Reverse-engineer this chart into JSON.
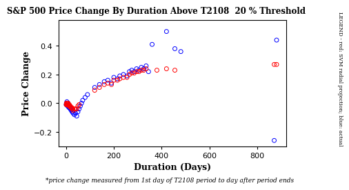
{
  "title": "S&P 500 Price Change By Duration Above T2108  20 % Threshold",
  "xlabel": "Duration (Days)",
  "ylabel": "Price Change",
  "footnote": "*price change measured from 1st day of T2108 period to day after period ends",
  "legend_text": "LEGEND - red: SVM radial projection; blue: actual",
  "xlim": [
    -30,
    920
  ],
  "ylim": [
    -0.3,
    0.58
  ],
  "xticks": [
    0,
    200,
    400,
    600,
    800
  ],
  "yticks": [
    -0.2,
    0.0,
    0.2,
    0.4
  ],
  "blue_x": [
    1,
    2,
    3,
    4,
    5,
    6,
    7,
    8,
    9,
    10,
    12,
    14,
    16,
    18,
    20,
    22,
    24,
    26,
    28,
    30,
    35,
    40,
    45,
    50,
    55,
    60,
    65,
    70,
    80,
    90,
    120,
    140,
    160,
    175,
    190,
    200,
    215,
    225,
    240,
    255,
    265,
    275,
    285,
    295,
    305,
    315,
    325,
    335,
    345,
    360,
    420,
    455,
    480,
    870,
    880
  ],
  "blue_y": [
    -0.01,
    0.0,
    -0.01,
    0.01,
    -0.01,
    0.0,
    -0.02,
    -0.01,
    0.0,
    -0.02,
    -0.03,
    -0.02,
    -0.03,
    -0.04,
    -0.03,
    -0.05,
    -0.04,
    -0.06,
    -0.06,
    -0.07,
    -0.08,
    -0.07,
    -0.09,
    -0.06,
    -0.04,
    -0.02,
    0.0,
    0.02,
    0.04,
    0.06,
    0.11,
    0.13,
    0.15,
    0.16,
    0.14,
    0.18,
    0.17,
    0.19,
    0.2,
    0.19,
    0.22,
    0.23,
    0.22,
    0.24,
    0.23,
    0.25,
    0.24,
    0.26,
    0.22,
    0.41,
    0.5,
    0.38,
    0.36,
    -0.26,
    0.44
  ],
  "red_x": [
    1,
    2,
    3,
    4,
    5,
    6,
    7,
    8,
    9,
    10,
    12,
    14,
    16,
    18,
    20,
    22,
    24,
    26,
    28,
    30,
    35,
    40,
    45,
    50,
    55,
    120,
    140,
    160,
    175,
    190,
    200,
    215,
    225,
    240,
    255,
    265,
    275,
    285,
    295,
    305,
    315,
    325,
    335,
    380,
    420,
    455,
    870,
    880
  ],
  "red_y": [
    -0.01,
    0.0,
    -0.01,
    0.0,
    -0.01,
    0.0,
    -0.01,
    -0.01,
    0.0,
    -0.01,
    -0.02,
    -0.01,
    -0.02,
    -0.02,
    -0.03,
    -0.03,
    -0.03,
    -0.04,
    -0.04,
    -0.05,
    -0.04,
    -0.04,
    -0.04,
    -0.02,
    -0.01,
    0.09,
    0.11,
    0.13,
    0.14,
    0.13,
    0.16,
    0.16,
    0.17,
    0.18,
    0.18,
    0.2,
    0.21,
    0.21,
    0.22,
    0.22,
    0.23,
    0.23,
    0.24,
    0.23,
    0.24,
    0.23,
    0.27,
    0.27
  ],
  "bg_color": "#ffffff",
  "blue_color": "#0000ff",
  "red_color": "#ff0000",
  "marker_size": 18,
  "marker_lw": 0.7,
  "title_fontsize": 8.5,
  "axis_label_fontsize": 9,
  "tick_fontsize": 8,
  "footnote_fontsize": 6.5,
  "legend_fontsize": 5.5
}
